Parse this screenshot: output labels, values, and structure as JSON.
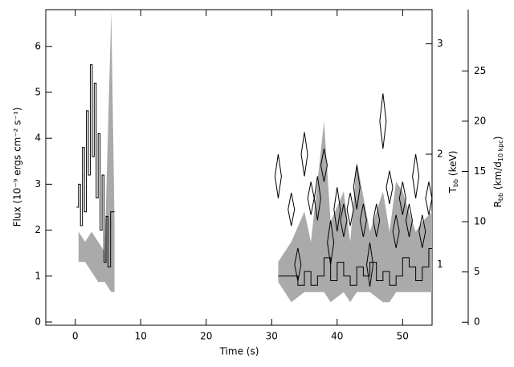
{
  "chart_data": {
    "type": "line",
    "xlabel": "Time (s)",
    "ylabel": "Flux (10⁻⁹ ergs cm⁻² s⁻¹)",
    "y2label": [
      "T",
      "bb",
      " (keV)"
    ],
    "y3label": [
      "R",
      "bb",
      " (km/d",
      "10 kpc",
      ")"
    ],
    "xlim": [
      -4.5,
      54.5
    ],
    "xticks": [
      0,
      10,
      20,
      30,
      40,
      50
    ],
    "ylim": [
      -0.07,
      6.8
    ],
    "yticks": [
      0,
      1,
      2,
      3,
      4,
      5,
      6
    ],
    "y2lim": [
      0.45,
      3.31
    ],
    "y2ticks": [
      1,
      2,
      3
    ],
    "y3lim": [
      -0.3,
      31.1
    ],
    "y3ticks": [
      0,
      5,
      10,
      15,
      20,
      25
    ],
    "series": [
      {
        "name": "Rbb",
        "kind": "band",
        "axis": "y3",
        "color": "#aaaaaa",
        "x": [
          0.5,
          1.5,
          2.5,
          3.5,
          4.5,
          5.5,
          6,
          null,
          31,
          33,
          35,
          36,
          38,
          39,
          41,
          42,
          43,
          45,
          47,
          48,
          49,
          50,
          52,
          53,
          54.5
        ],
        "lower": [
          6,
          6,
          5,
          4,
          4,
          3,
          3,
          null,
          4,
          2,
          3,
          3,
          3,
          2,
          3,
          2,
          3,
          3,
          2,
          2,
          3,
          3,
          3,
          3,
          3
        ],
        "upper": [
          9,
          8,
          9,
          8,
          7,
          31,
          10,
          null,
          6,
          8,
          11,
          8,
          20,
          10,
          13,
          8,
          16,
          9,
          13,
          9,
          14,
          13,
          9,
          10,
          11
        ]
      },
      {
        "name": "Flux",
        "kind": "steps",
        "axis": "y",
        "color": "#000000",
        "x": [
          0.2,
          0.5,
          0.8,
          1.1,
          1.4,
          1.7,
          2.0,
          2.3,
          2.6,
          2.9,
          3.2,
          3.5,
          3.8,
          4.1,
          4.4,
          4.7,
          5.0,
          5.4,
          6.0,
          null,
          31,
          33,
          34,
          35,
          36,
          37,
          38,
          39,
          40,
          41,
          42,
          43,
          44,
          45,
          46,
          47,
          48,
          49,
          50,
          51,
          52,
          53,
          54,
          54.5
        ],
        "values": [
          2.5,
          3.0,
          2.1,
          3.8,
          2.4,
          4.6,
          3.2,
          5.6,
          3.6,
          5.2,
          2.7,
          4.1,
          2.0,
          3.2,
          1.3,
          2.3,
          1.2,
          2.4,
          2.4,
          null,
          1.0,
          1.0,
          0.8,
          1.1,
          0.8,
          1.0,
          1.4,
          0.9,
          1.3,
          1.0,
          0.8,
          1.2,
          1.0,
          1.3,
          0.9,
          1.1,
          0.8,
          1.0,
          1.4,
          1.2,
          0.9,
          1.2,
          1.6,
          1.6
        ]
      },
      {
        "name": "Tbb",
        "kind": "diamonds",
        "axis": "y2",
        "color": "#000000",
        "x": [
          31,
          33,
          34,
          35,
          36,
          37,
          38,
          39,
          40,
          41,
          42,
          43,
          44,
          45,
          46,
          47,
          48,
          49,
          50,
          51,
          52,
          53,
          54
        ],
        "values": [
          1.8,
          1.5,
          1.0,
          2.0,
          1.6,
          1.6,
          1.9,
          1.2,
          1.5,
          1.4,
          1.5,
          1.7,
          1.4,
          1.0,
          1.4,
          2.3,
          1.7,
          1.3,
          1.6,
          1.4,
          1.8,
          1.3,
          1.6
        ],
        "errors": [
          0.2,
          0.15,
          0.15,
          0.2,
          0.15,
          0.2,
          0.15,
          0.2,
          0.2,
          0.15,
          0.15,
          0.2,
          0.15,
          0.2,
          0.15,
          0.25,
          0.15,
          0.15,
          0.15,
          0.15,
          0.2,
          0.15,
          0.15
        ]
      }
    ]
  }
}
